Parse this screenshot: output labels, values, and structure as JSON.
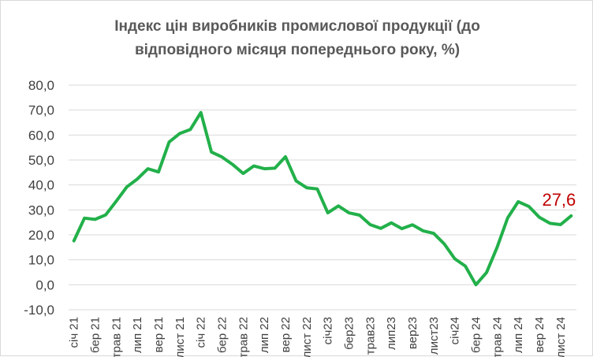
{
  "chart_data": {
    "type": "line",
    "title_line1": "Індекс цін виробників промислової продукції (до",
    "title_line2": "відповідного місяця попереднього року, %)",
    "ylim": [
      -10,
      80
    ],
    "yticks": [
      "-10,0",
      "0,0",
      "10,0",
      "20,0",
      "30,0",
      "40,0",
      "50,0",
      "60,0",
      "70,0",
      "80,0"
    ],
    "grid": true,
    "legend": "none",
    "colors": {
      "line": "#22b04a",
      "label": "#c00000",
      "grid": "#d9d9d9"
    },
    "x_tick_labels": [
      {
        "index": 0,
        "label": "січ 21"
      },
      {
        "index": 2,
        "label": "бер 21"
      },
      {
        "index": 4,
        "label": "трав 21"
      },
      {
        "index": 6,
        "label": "лип 21"
      },
      {
        "index": 8,
        "label": "вер 21"
      },
      {
        "index": 10,
        "label": "лист 21"
      },
      {
        "index": 12,
        "label": "січ 22"
      },
      {
        "index": 14,
        "label": "бер 22"
      },
      {
        "index": 16,
        "label": "трав 22"
      },
      {
        "index": 18,
        "label": "лип 22"
      },
      {
        "index": 20,
        "label": "вер 22"
      },
      {
        "index": 22,
        "label": "лист 22"
      },
      {
        "index": 24,
        "label": "січ23"
      },
      {
        "index": 26,
        "label": "бер23"
      },
      {
        "index": 28,
        "label": "трав23"
      },
      {
        "index": 30,
        "label": "лип23"
      },
      {
        "index": 32,
        "label": "вер23"
      },
      {
        "index": 34,
        "label": "лист23"
      },
      {
        "index": 36,
        "label": "січ24"
      },
      {
        "index": 38,
        "label": "бер 24"
      },
      {
        "index": 40,
        "label": "трав 24"
      },
      {
        "index": 42,
        "label": "лип 24"
      },
      {
        "index": 44,
        "label": "вер 24"
      },
      {
        "index": 46,
        "label": "лист 24"
      }
    ],
    "series": [
      {
        "values": [
          17.6,
          26.7,
          26.2,
          28.0,
          33.5,
          39.2,
          42.4,
          46.5,
          45.2,
          57.2,
          60.6,
          62.2,
          69.0,
          53.2,
          51.2,
          48.2,
          44.6,
          47.6,
          46.5,
          46.7,
          51.3,
          41.6,
          38.9,
          38.4,
          28.8,
          31.6,
          28.8,
          27.9,
          24.1,
          22.6,
          24.8,
          22.5,
          24.0,
          21.6,
          20.6,
          16.4,
          10.4,
          7.5,
          0.0,
          4.9,
          15.0,
          26.8,
          33.3,
          31.4,
          27.0,
          24.6,
          24.1,
          27.6
        ]
      }
    ],
    "annotations": [
      {
        "index": 47,
        "text": "27,6"
      }
    ]
  }
}
